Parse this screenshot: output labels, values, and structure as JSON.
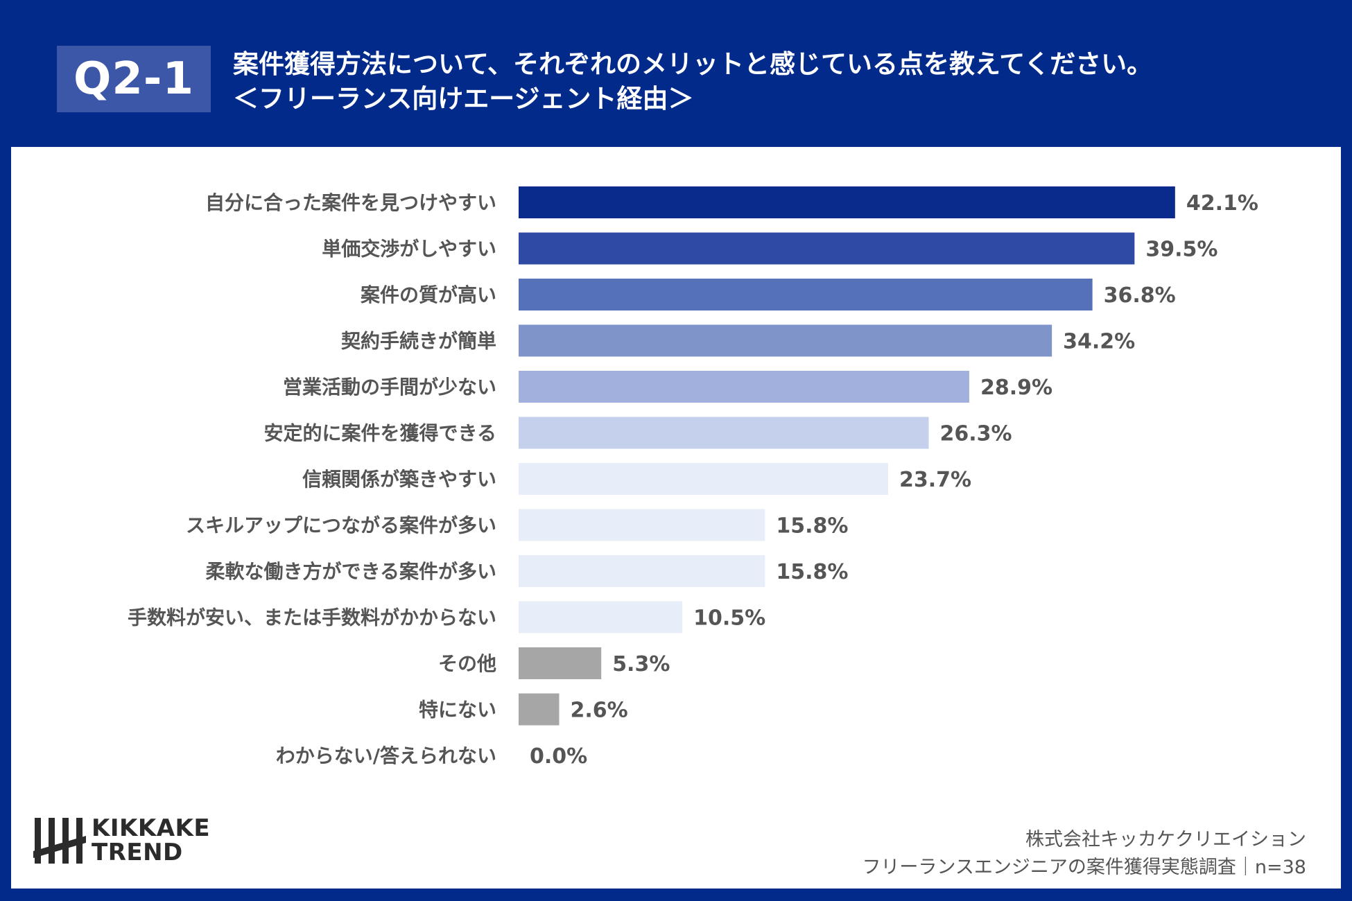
{
  "header": {
    "badge": "Q2-1",
    "title_line1": "案件獲得方法について、それぞれのメリットと感じている点を教えてください。",
    "title_line2": "＜フリーランス向けエージェント経由＞"
  },
  "chart_data": {
    "type": "bar",
    "orientation": "horizontal",
    "title": "",
    "xlabel": "",
    "ylabel": "",
    "categories": [
      "自分に合った案件を見つけやすい",
      "単価交渉がしやすい",
      "案件の質が高い",
      "契約手続きが簡単",
      "営業活動の手間が少ない",
      "安定的に案件を獲得できる",
      "信頼関係が築きやすい",
      "スキルアップにつながる案件が多い",
      "柔軟な働き方ができる案件が多い",
      "手数料が安い、または手数料がかからない",
      "その他",
      "特にない",
      "わからない/答えられない"
    ],
    "values": [
      42.1,
      39.5,
      36.8,
      34.2,
      28.9,
      26.3,
      23.7,
      15.8,
      15.8,
      10.5,
      5.3,
      2.6,
      0.0
    ],
    "value_labels": [
      "42.1%",
      "39.5%",
      "36.8%",
      "34.2%",
      "28.9%",
      "26.3%",
      "23.7%",
      "15.8%",
      "15.8%",
      "10.5%",
      "5.3%",
      "2.6%",
      "0.0%"
    ],
    "colors": [
      "#0a2a8c",
      "#2f4aa3",
      "#5571b8",
      "#7f95c9",
      "#a1b0dc",
      "#c5d0ec",
      "#e8eef9",
      "#e8eef9",
      "#e8eef9",
      "#e8eef9",
      "#a6a6a6",
      "#a6a6a6",
      "#a6a6a6"
    ],
    "xlim": [
      0,
      50
    ],
    "grid": false,
    "legend": "none"
  },
  "logo": {
    "line1": "KIKKAKE",
    "line2": "TREND"
  },
  "source": {
    "line1": "株式会社キッカケクリエイション",
    "line2": "フリーランスエンジニアの案件獲得実態調査｜n=38"
  }
}
